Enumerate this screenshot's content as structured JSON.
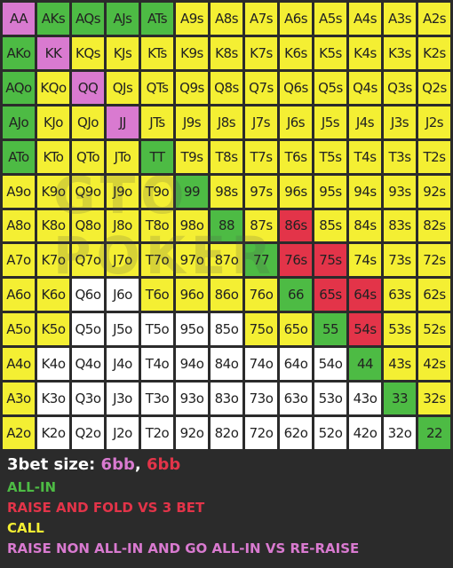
{
  "colors": {
    "yellow": "#f4ef33",
    "green": "#4dbb44",
    "red": "#e33449",
    "pink": "#d97ad0",
    "white": "#ffffff",
    "background": "#2b2b2b"
  },
  "watermark": "GTO POKER",
  "grid": [
    [
      [
        "AA",
        "p"
      ],
      [
        "AKs",
        "g"
      ],
      [
        "AQs",
        "g"
      ],
      [
        "AJs",
        "g"
      ],
      [
        "ATs",
        "g"
      ],
      [
        "A9s",
        "y"
      ],
      [
        "A8s",
        "y"
      ],
      [
        "A7s",
        "y"
      ],
      [
        "A6s",
        "y"
      ],
      [
        "A5s",
        "y"
      ],
      [
        "A4s",
        "y"
      ],
      [
        "A3s",
        "y"
      ],
      [
        "A2s",
        "y"
      ]
    ],
    [
      [
        "AKo",
        "g"
      ],
      [
        "KK",
        "p"
      ],
      [
        "KQs",
        "y"
      ],
      [
        "KJs",
        "y"
      ],
      [
        "KTs",
        "y"
      ],
      [
        "K9s",
        "y"
      ],
      [
        "K8s",
        "y"
      ],
      [
        "K7s",
        "y"
      ],
      [
        "K6s",
        "y"
      ],
      [
        "K5s",
        "y"
      ],
      [
        "K4s",
        "y"
      ],
      [
        "K3s",
        "y"
      ],
      [
        "K2s",
        "y"
      ]
    ],
    [
      [
        "AQo",
        "g"
      ],
      [
        "KQo",
        "y"
      ],
      [
        "QQ",
        "p"
      ],
      [
        "QJs",
        "y"
      ],
      [
        "QTs",
        "y"
      ],
      [
        "Q9s",
        "y"
      ],
      [
        "Q8s",
        "y"
      ],
      [
        "Q7s",
        "y"
      ],
      [
        "Q6s",
        "y"
      ],
      [
        "Q5s",
        "y"
      ],
      [
        "Q4s",
        "y"
      ],
      [
        "Q3s",
        "y"
      ],
      [
        "Q2s",
        "y"
      ]
    ],
    [
      [
        "AJo",
        "g"
      ],
      [
        "KJo",
        "y"
      ],
      [
        "QJo",
        "y"
      ],
      [
        "JJ",
        "p"
      ],
      [
        "JTs",
        "y"
      ],
      [
        "J9s",
        "y"
      ],
      [
        "J8s",
        "y"
      ],
      [
        "J7s",
        "y"
      ],
      [
        "J6s",
        "y"
      ],
      [
        "J5s",
        "y"
      ],
      [
        "J4s",
        "y"
      ],
      [
        "J3s",
        "y"
      ],
      [
        "J2s",
        "y"
      ]
    ],
    [
      [
        "ATo",
        "g"
      ],
      [
        "KTo",
        "y"
      ],
      [
        "QTo",
        "y"
      ],
      [
        "JTo",
        "y"
      ],
      [
        "TT",
        "g"
      ],
      [
        "T9s",
        "y"
      ],
      [
        "T8s",
        "y"
      ],
      [
        "T7s",
        "y"
      ],
      [
        "T6s",
        "y"
      ],
      [
        "T5s",
        "y"
      ],
      [
        "T4s",
        "y"
      ],
      [
        "T3s",
        "y"
      ],
      [
        "T2s",
        "y"
      ]
    ],
    [
      [
        "A9o",
        "y"
      ],
      [
        "K9o",
        "y"
      ],
      [
        "Q9o",
        "y"
      ],
      [
        "J9o",
        "y"
      ],
      [
        "T9o",
        "y"
      ],
      [
        "99",
        "g"
      ],
      [
        "98s",
        "y"
      ],
      [
        "97s",
        "y"
      ],
      [
        "96s",
        "y"
      ],
      [
        "95s",
        "y"
      ],
      [
        "94s",
        "y"
      ],
      [
        "93s",
        "y"
      ],
      [
        "92s",
        "y"
      ]
    ],
    [
      [
        "A8o",
        "y"
      ],
      [
        "K8o",
        "y"
      ],
      [
        "Q8o",
        "y"
      ],
      [
        "J8o",
        "y"
      ],
      [
        "T8o",
        "y"
      ],
      [
        "98o",
        "y"
      ],
      [
        "88",
        "g"
      ],
      [
        "87s",
        "y"
      ],
      [
        "86s",
        "r"
      ],
      [
        "85s",
        "y"
      ],
      [
        "84s",
        "y"
      ],
      [
        "83s",
        "y"
      ],
      [
        "82s",
        "y"
      ]
    ],
    [
      [
        "A7o",
        "y"
      ],
      [
        "K7o",
        "y"
      ],
      [
        "Q7o",
        "y"
      ],
      [
        "J7o",
        "y"
      ],
      [
        "T7o",
        "y"
      ],
      [
        "97o",
        "y"
      ],
      [
        "87o",
        "y"
      ],
      [
        "77",
        "g"
      ],
      [
        "76s",
        "r"
      ],
      [
        "75s",
        "r"
      ],
      [
        "74s",
        "y"
      ],
      [
        "73s",
        "y"
      ],
      [
        "72s",
        "y"
      ]
    ],
    [
      [
        "A6o",
        "y"
      ],
      [
        "K6o",
        "y"
      ],
      [
        "Q6o",
        "w"
      ],
      [
        "J6o",
        "w"
      ],
      [
        "T6o",
        "y"
      ],
      [
        "96o",
        "y"
      ],
      [
        "86o",
        "y"
      ],
      [
        "76o",
        "y"
      ],
      [
        "66",
        "g"
      ],
      [
        "65s",
        "r"
      ],
      [
        "64s",
        "r"
      ],
      [
        "63s",
        "y"
      ],
      [
        "62s",
        "y"
      ]
    ],
    [
      [
        "A5o",
        "y"
      ],
      [
        "K5o",
        "y"
      ],
      [
        "Q5o",
        "w"
      ],
      [
        "J5o",
        "w"
      ],
      [
        "T5o",
        "w"
      ],
      [
        "95o",
        "w"
      ],
      [
        "85o",
        "w"
      ],
      [
        "75o",
        "y"
      ],
      [
        "65o",
        "y"
      ],
      [
        "55",
        "g"
      ],
      [
        "54s",
        "r"
      ],
      [
        "53s",
        "y"
      ],
      [
        "52s",
        "y"
      ]
    ],
    [
      [
        "A4o",
        "y"
      ],
      [
        "K4o",
        "w"
      ],
      [
        "Q4o",
        "w"
      ],
      [
        "J4o",
        "w"
      ],
      [
        "T4o",
        "w"
      ],
      [
        "94o",
        "w"
      ],
      [
        "84o",
        "w"
      ],
      [
        "74o",
        "w"
      ],
      [
        "64o",
        "w"
      ],
      [
        "54o",
        "w"
      ],
      [
        "44",
        "g"
      ],
      [
        "43s",
        "y"
      ],
      [
        "42s",
        "y"
      ]
    ],
    [
      [
        "A3o",
        "y"
      ],
      [
        "K3o",
        "w"
      ],
      [
        "Q3o",
        "w"
      ],
      [
        "J3o",
        "w"
      ],
      [
        "T3o",
        "w"
      ],
      [
        "93o",
        "w"
      ],
      [
        "83o",
        "w"
      ],
      [
        "73o",
        "w"
      ],
      [
        "63o",
        "w"
      ],
      [
        "53o",
        "w"
      ],
      [
        "43o",
        "w"
      ],
      [
        "33",
        "g"
      ],
      [
        "32s",
        "y"
      ]
    ],
    [
      [
        "A2o",
        "y"
      ],
      [
        "K2o",
        "w"
      ],
      [
        "Q2o",
        "w"
      ],
      [
        "J2o",
        "w"
      ],
      [
        "T2o",
        "w"
      ],
      [
        "92o",
        "w"
      ],
      [
        "82o",
        "w"
      ],
      [
        "72o",
        "w"
      ],
      [
        "62o",
        "w"
      ],
      [
        "52o",
        "w"
      ],
      [
        "42o",
        "w"
      ],
      [
        "32o",
        "w"
      ],
      [
        "22",
        "g"
      ]
    ]
  ],
  "legend": {
    "size_label": "3bet size:",
    "size_a": "6bb",
    "size_sep": ",",
    "size_b": "6bb",
    "items": [
      {
        "text": "ALL-IN",
        "color": "#4dbb44"
      },
      {
        "text": "RAISE AND FOLD VS 3 BET",
        "color": "#e33449"
      },
      {
        "text": "CALL",
        "color": "#f4ef33"
      },
      {
        "text": "RAISE NON ALL-IN AND GO ALL-IN VS RE-RAISE",
        "color": "#d97ad0"
      }
    ]
  }
}
